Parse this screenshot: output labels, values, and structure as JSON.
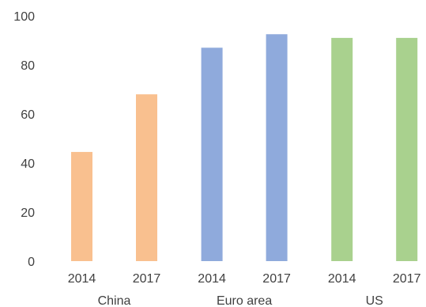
{
  "chart_data": {
    "type": "bar",
    "title": "",
    "xlabel": "",
    "ylabel": "",
    "ylim": [
      0,
      100
    ],
    "yticks": [
      0,
      20,
      40,
      60,
      80,
      100
    ],
    "grid": false,
    "legend": "none",
    "groups": [
      {
        "name": "China",
        "color": "#F9C08F",
        "bars": [
          {
            "x": "2014",
            "value": 44.5
          },
          {
            "x": "2017",
            "value": 68
          }
        ]
      },
      {
        "name": "Euro area",
        "color": "#8FAADC",
        "bars": [
          {
            "x": "2014",
            "value": 87
          },
          {
            "x": "2017",
            "value": 92.5
          }
        ]
      },
      {
        "name": "US",
        "color": "#A9D18E",
        "bars": [
          {
            "x": "2014",
            "value": 91
          },
          {
            "x": "2017",
            "value": 91
          }
        ]
      }
    ]
  }
}
